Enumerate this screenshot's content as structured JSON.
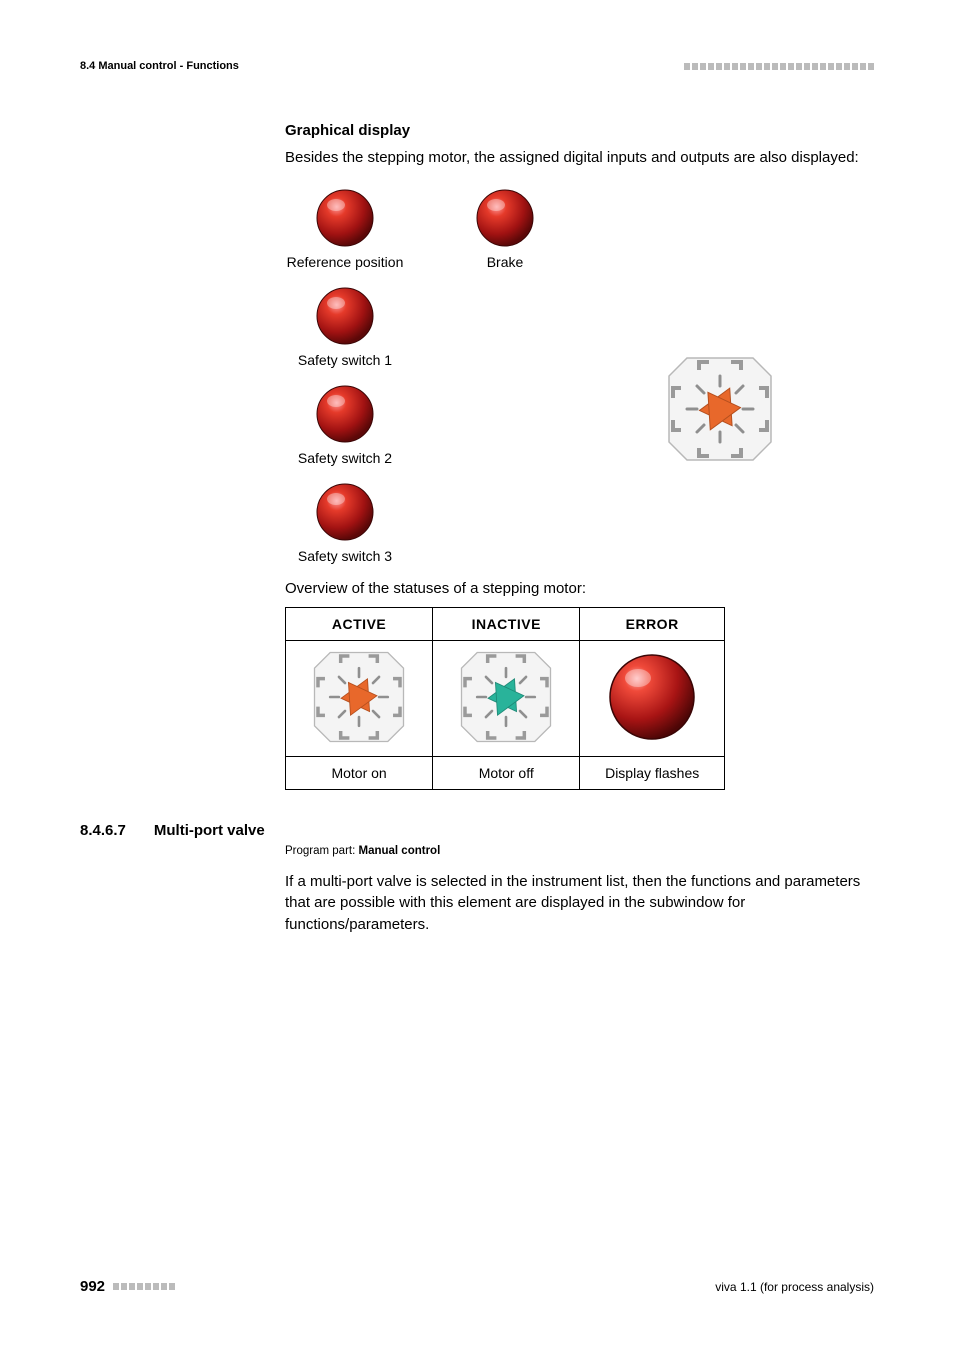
{
  "header": {
    "section_label": "8.4 Manual control - Functions",
    "decorator_squares": 24
  },
  "graphical": {
    "heading": "Graphical display",
    "intro": "Besides the stepping motor, the assigned digital inputs and outputs are also displayed:",
    "indicators": {
      "reference": {
        "label": "Reference position",
        "color": "#b51616"
      },
      "brake": {
        "label": "Brake",
        "color": "#b51616"
      },
      "safety1": {
        "label": "Safety switch 1",
        "color": "#b51616"
      },
      "safety2": {
        "label": "Safety switch 2",
        "color": "#b51616"
      },
      "safety3": {
        "label": "Safety switch 3",
        "color": "#b51616"
      }
    },
    "motor": {
      "active_color": "#e8682b",
      "inactive_color": "#29b39a",
      "frame_color": "#c8c8c8",
      "tick_color": "#959595"
    },
    "overview_text": "Overview of the statuses of a stepping motor:",
    "table": {
      "headers": [
        "ACTIVE",
        "INACTIVE",
        "ERROR"
      ],
      "captions": [
        "Motor on",
        "Motor off",
        "Display flashes"
      ]
    }
  },
  "section": {
    "number": "8.4.6.7",
    "title": "Multi-port valve",
    "program_part_prefix": "Program part: ",
    "program_part_value": "Manual control",
    "body": "If a multi-port valve is selected in the instrument list, then the functions and parameters that are possible with this element are displayed in the subwindow for functions/parameters."
  },
  "footer": {
    "page": "992",
    "decorator_squares": 8,
    "right": "viva 1.1 (for process analysis)"
  },
  "colors": {
    "text": "#000000",
    "decorator": "#bbbbbb",
    "led_red_dark": "#7a0d0d",
    "led_red": "#c81818",
    "led_highlight": "#ff8a8a"
  }
}
